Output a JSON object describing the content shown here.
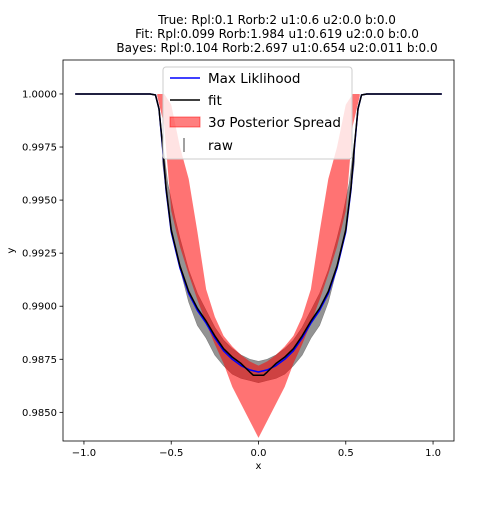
{
  "chart_data": {
    "type": "line",
    "title_lines": [
      "True: Rpl:0.1 Rorb:2 u1:0.6 u2:0.0 b:0.0",
      "Fit: Rpl:0.099 Rorb:1.984 u1:0.619 u2:0.0 b:0.0",
      "Bayes: Rpl:0.104 Rorb:2.697 u1:0.654 u2:0.011 b:0.0"
    ],
    "xlabel": "x",
    "ylabel": "y",
    "xlim": [
      -1.12,
      1.12
    ],
    "ylim": [
      0.98365,
      1.0016
    ],
    "xticks": [
      -1.0,
      -0.5,
      0.0,
      0.5,
      1.0
    ],
    "xtick_labels": [
      "−1.0",
      "−0.5",
      "0.0",
      "0.5",
      "1.0"
    ],
    "yticks": [
      0.985,
      0.9875,
      0.99,
      0.9925,
      0.995,
      0.9975,
      1.0
    ],
    "ytick_labels": [
      "0.9850",
      "0.9875",
      "0.9900",
      "0.9925",
      "0.9950",
      "0.9975",
      "1.0000"
    ],
    "grid": false,
    "legend_position": "top-center",
    "legend": [
      {
        "label": "Max Liklihood",
        "kind": "line",
        "color": "#0000ff"
      },
      {
        "label": "fit",
        "kind": "line",
        "color": "#000000"
      },
      {
        "label": "3σ Posterior Spread",
        "kind": "patch",
        "color": "#ff0000"
      },
      {
        "label": "raw",
        "kind": "errorbar",
        "color": "#808080"
      }
    ],
    "series": [
      {
        "name": "Max Liklihood",
        "color": "#0000ff",
        "x": [
          -1.05,
          -0.62,
          -0.59,
          -0.57,
          -0.55,
          -0.53,
          -0.5,
          -0.45,
          -0.4,
          -0.35,
          -0.3,
          -0.25,
          -0.2,
          -0.15,
          -0.1,
          -0.05,
          0.0,
          0.05,
          0.1,
          0.15,
          0.2,
          0.25,
          0.3,
          0.35,
          0.4,
          0.45,
          0.5,
          0.53,
          0.55,
          0.57,
          0.59,
          0.62,
          1.05
        ],
        "y": [
          1.0,
          1.0,
          0.99995,
          0.9993,
          0.9975,
          0.9955,
          0.9935,
          0.9918,
          0.9906,
          0.9898,
          0.9892,
          0.9885,
          0.9879,
          0.9875,
          0.9872,
          0.987,
          0.9869,
          0.987,
          0.9872,
          0.9875,
          0.9879,
          0.9885,
          0.9892,
          0.9898,
          0.9906,
          0.9918,
          0.9935,
          0.9955,
          0.9975,
          0.9993,
          0.99995,
          1.0,
          1.0
        ]
      },
      {
        "name": "fit",
        "color": "#000000",
        "x": [
          -1.05,
          -0.62,
          -0.59,
          -0.57,
          -0.55,
          -0.53,
          -0.5,
          -0.45,
          -0.4,
          -0.35,
          -0.3,
          -0.25,
          -0.2,
          -0.15,
          -0.1,
          -0.05,
          -0.03,
          0.0,
          0.03,
          0.05,
          0.1,
          0.15,
          0.2,
          0.25,
          0.3,
          0.35,
          0.4,
          0.45,
          0.5,
          0.53,
          0.55,
          0.57,
          0.59,
          0.62,
          1.05
        ],
        "y": [
          1.0,
          1.0,
          0.99995,
          0.9993,
          0.9976,
          0.9956,
          0.9936,
          0.9919,
          0.9907,
          0.9899,
          0.9893,
          0.9886,
          0.988,
          0.9876,
          0.9873,
          0.9869,
          0.98675,
          0.98675,
          0.98675,
          0.9869,
          0.9873,
          0.9876,
          0.988,
          0.9886,
          0.9893,
          0.9899,
          0.9907,
          0.9919,
          0.9936,
          0.9956,
          0.9976,
          0.9993,
          0.99995,
          1.0,
          1.0
        ]
      }
    ],
    "posterior_band": {
      "label": "3σ Posterior Spread",
      "color": "#ff0000",
      "x": [
        -0.58,
        -0.54,
        -0.5,
        -0.45,
        -0.4,
        -0.35,
        -0.3,
        -0.25,
        -0.2,
        -0.15,
        -0.1,
        -0.05,
        0.0,
        0.05,
        0.1,
        0.15,
        0.2,
        0.25,
        0.3,
        0.35,
        0.4,
        0.45,
        0.5,
        0.54,
        0.58
      ],
      "upper": [
        1.0,
        1.0,
        0.9995,
        0.9975,
        0.996,
        0.9935,
        0.9908,
        0.9895,
        0.9886,
        0.9881,
        0.9877,
        0.9874,
        0.9872,
        0.9874,
        0.9877,
        0.9881,
        0.9886,
        0.9895,
        0.9908,
        0.9935,
        0.996,
        0.9975,
        0.9995,
        1.0,
        1.0
      ],
      "lower": [
        0.9999,
        0.9985,
        0.9945,
        0.9928,
        0.9915,
        0.9903,
        0.9892,
        0.9882,
        0.9873,
        0.9862,
        0.9854,
        0.9846,
        0.9838,
        0.9846,
        0.9854,
        0.9862,
        0.9873,
        0.9882,
        0.9892,
        0.9903,
        0.9915,
        0.9928,
        0.9945,
        0.9985,
        0.9999
      ]
    },
    "raw_band": {
      "label": "raw",
      "color": "#808080",
      "x": [
        -0.55,
        -0.52,
        -0.48,
        -0.45,
        -0.4,
        -0.35,
        -0.3,
        -0.25,
        -0.2,
        -0.15,
        -0.1,
        -0.05,
        0.0,
        0.05,
        0.1,
        0.15,
        0.2,
        0.25,
        0.3,
        0.35,
        0.4,
        0.45,
        0.48,
        0.52,
        0.55
      ],
      "upper": [
        0.9978,
        0.9958,
        0.9942,
        0.9932,
        0.9917,
        0.9906,
        0.9898,
        0.989,
        0.9884,
        0.988,
        0.9877,
        0.9875,
        0.9874,
        0.9875,
        0.9877,
        0.988,
        0.9884,
        0.989,
        0.9898,
        0.9906,
        0.9917,
        0.9932,
        0.9942,
        0.9958,
        0.9978
      ],
      "lower": [
        0.9968,
        0.9948,
        0.9929,
        0.9918,
        0.9902,
        0.9891,
        0.9885,
        0.9877,
        0.9872,
        0.9868,
        0.9866,
        0.9865,
        0.9864,
        0.9865,
        0.9866,
        0.9868,
        0.9872,
        0.9877,
        0.9885,
        0.9891,
        0.9902,
        0.9918,
        0.9929,
        0.9948,
        0.9968
      ]
    }
  }
}
